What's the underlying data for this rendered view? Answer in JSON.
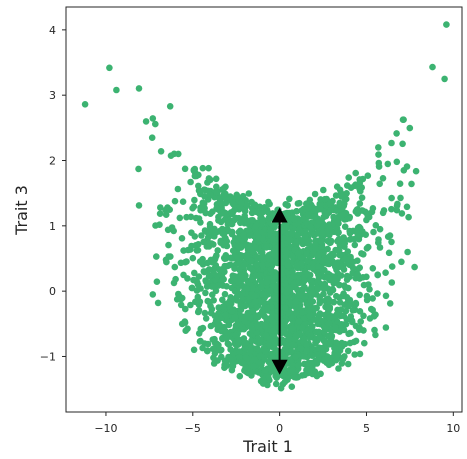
{
  "chart_data": {
    "type": "scatter",
    "title": "",
    "xlabel": "Trait 1",
    "ylabel": "Trait 3",
    "xlim": [
      -12.3,
      10.5
    ],
    "ylim": [
      -1.85,
      4.35
    ],
    "xticks": [
      -10,
      -5,
      0,
      5,
      10
    ],
    "xtick_labels": [
      "−10",
      "−5",
      "0",
      "5",
      "10"
    ],
    "yticks": [
      -1,
      0,
      1,
      2,
      3,
      4
    ],
    "ytick_labels": [
      "−1",
      "0",
      "1",
      "2",
      "3",
      "4"
    ],
    "grid": false,
    "legend": "none",
    "point_color": "#3cb371",
    "cloud_shape": {
      "description": "dense U-shaped point cloud, lower edge ~ 0.022*x^2 - 1.35, upper edge ~ 0.029*x^2 + 1.25",
      "n_points": 2400
    },
    "outliers": [
      {
        "x": -11.2,
        "y": 2.86
      },
      {
        "x": -9.8,
        "y": 3.42
      },
      {
        "x": -9.4,
        "y": 3.08
      },
      {
        "x": -6.3,
        "y": 2.83
      },
      {
        "x": 8.8,
        "y": 3.43
      },
      {
        "x": 9.5,
        "y": 3.25
      },
      {
        "x": 9.6,
        "y": 4.08
      },
      {
        "x": -7.3,
        "y": -0.05
      },
      {
        "x": -7.0,
        "y": -0.18
      }
    ],
    "annotation": {
      "type": "double-arrow",
      "x": 0,
      "y_from": -1.25,
      "y_to": 1.25,
      "color": "#000000"
    }
  }
}
